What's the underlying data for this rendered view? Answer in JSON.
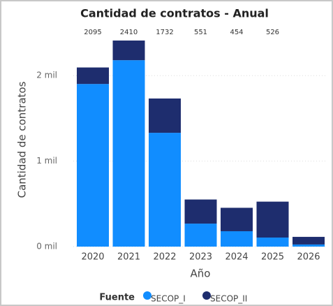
{
  "chart_data": {
    "type": "stacked_bar",
    "title": "Cantidad de contratos - Anual",
    "x_label": "Año",
    "y_label": "Cantidad de contratos",
    "legend_title": "Fuente",
    "categories": [
      "2020",
      "2021",
      "2022",
      "2023",
      "2024",
      "2025",
      "2026"
    ],
    "series": [
      {
        "name": "SECOP_I",
        "color": "#118DFF",
        "values": [
          1902,
          2180,
          1331,
          269,
          180,
          106,
          25
        ]
      },
      {
        "name": "SECOP_II",
        "color": "#1E2D6E",
        "values": [
          193,
          230,
          401,
          282,
          274,
          420,
          89
        ]
      }
    ],
    "totals": [
      2095,
      2410,
      1732,
      551,
      454,
      526,
      null
    ],
    "ylim": [
      0,
      2500
    ],
    "yticks": [
      {
        "value": 0,
        "label": "0 mil"
      },
      {
        "value": 1000,
        "label": "1 mil"
      },
      {
        "value": 2000,
        "label": "2 mil"
      }
    ],
    "grid": true
  }
}
